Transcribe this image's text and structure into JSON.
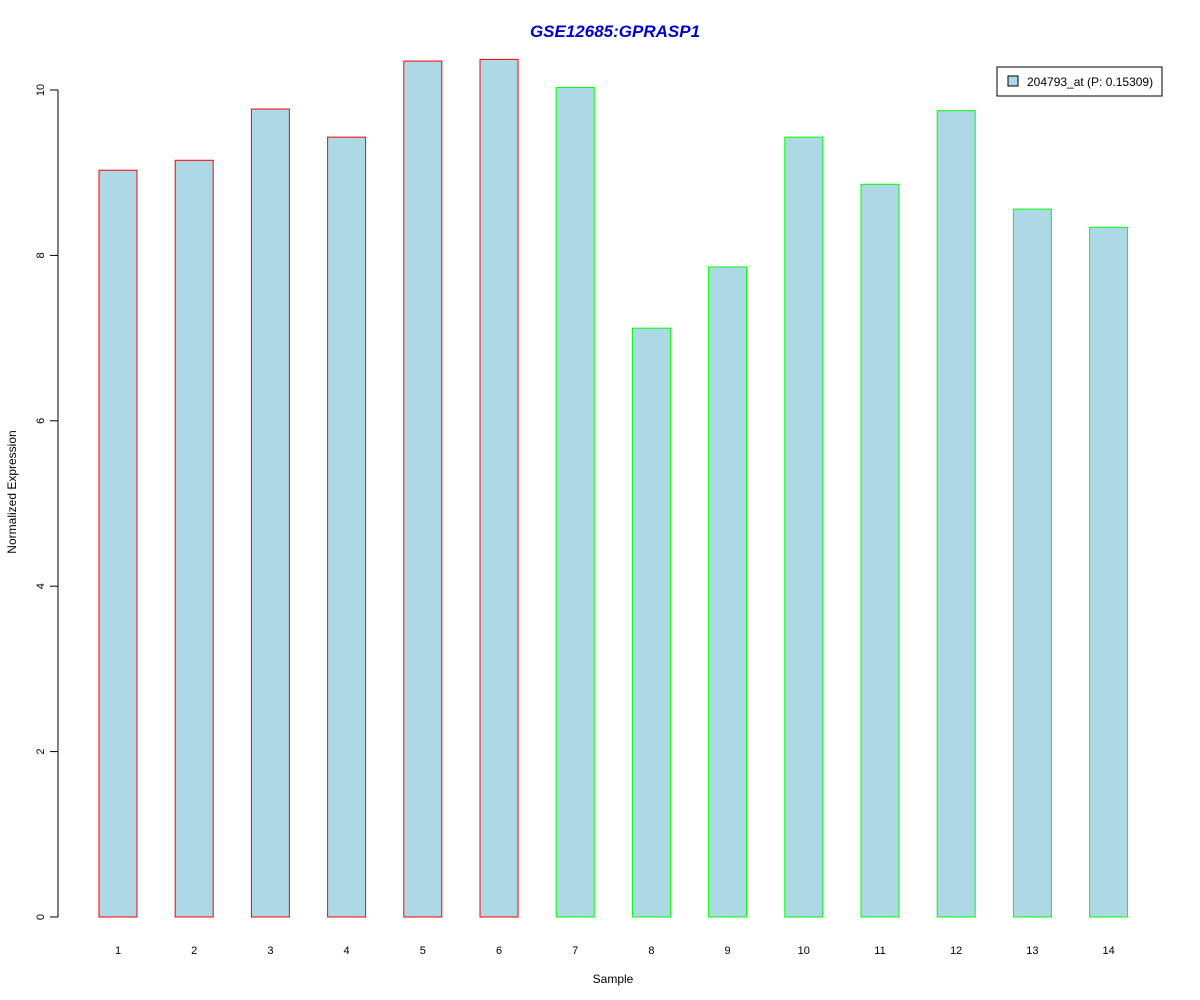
{
  "chart_data": {
    "type": "bar",
    "title": "GSE12685:GPRASP1",
    "title_color": "#0000CC",
    "xlabel": "Sample",
    "ylabel": "Normalized Expression",
    "categories": [
      "1",
      "2",
      "3",
      "4",
      "5",
      "6",
      "7",
      "8",
      "9",
      "10",
      "11",
      "12",
      "13",
      "14"
    ],
    "series": [
      {
        "name": "204793_at (P: 0.15309)",
        "values": [
          9.03,
          9.15,
          9.77,
          9.43,
          10.35,
          10.37,
          10.03,
          7.12,
          7.86,
          9.43,
          8.86,
          9.75,
          8.56,
          8.34
        ]
      }
    ],
    "fill_color": "#ADD8E6",
    "border_colors": [
      "#FF0000",
      "#FF0000",
      "#FF0000",
      "#FF0000",
      "#FF0000",
      "#FF0000",
      "#00FF00",
      "#00FF00",
      "#00FF00",
      "#00FF00",
      "#00FF00",
      "#00FF00",
      "#00FF00",
      "#00FF00"
    ],
    "ylim": [
      0,
      10.5
    ],
    "yticks": [
      0,
      2,
      4,
      6,
      8,
      10
    ],
    "grid": false,
    "legend_position": "top-right"
  }
}
